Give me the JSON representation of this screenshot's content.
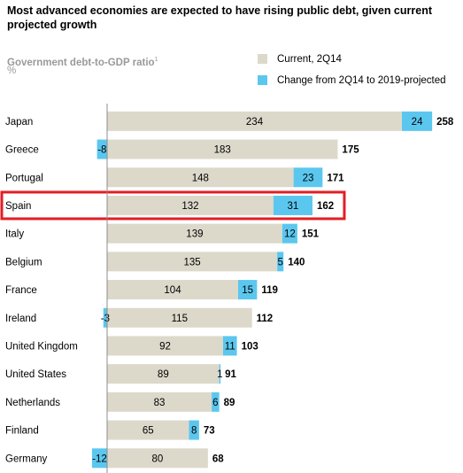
{
  "title": "Most advanced economies are expected to have rising public debt, given current projected growth",
  "subtitle": "Government debt-to-GDP ratio",
  "subtitle_footnote": "1",
  "unit": "%",
  "legend": [
    {
      "label": "Current, 2Q14",
      "color": "#dcd9cb"
    },
    {
      "label": "Change from 2Q14 to 2019-projected",
      "color": "#5bc7ef"
    }
  ],
  "highlight": {
    "country": "Spain",
    "color": "#e31e24"
  },
  "chart_data": {
    "type": "bar",
    "orientation": "horizontal",
    "stacked": true,
    "categories": [
      "Japan",
      "Greece",
      "Portugal",
      "Spain",
      "Italy",
      "Belgium",
      "France",
      "Ireland",
      "United Kingdom",
      "United States",
      "Netherlands",
      "Finland",
      "Germany"
    ],
    "series": [
      {
        "name": "Current, 2Q14",
        "color": "#dcd9cb",
        "values": [
          234,
          183,
          148,
          132,
          139,
          135,
          104,
          115,
          92,
          89,
          83,
          65,
          80
        ]
      },
      {
        "name": "Change from 2Q14 to 2019-projected",
        "color": "#5bc7ef",
        "values": [
          24,
          -8,
          23,
          31,
          12,
          5,
          15,
          -3,
          11,
          1,
          6,
          8,
          -12
        ]
      }
    ],
    "totals": [
      258,
      175,
      171,
      162,
      151,
      140,
      119,
      112,
      103,
      91,
      89,
      73,
      68
    ],
    "xlim": [
      0,
      260
    ]
  }
}
